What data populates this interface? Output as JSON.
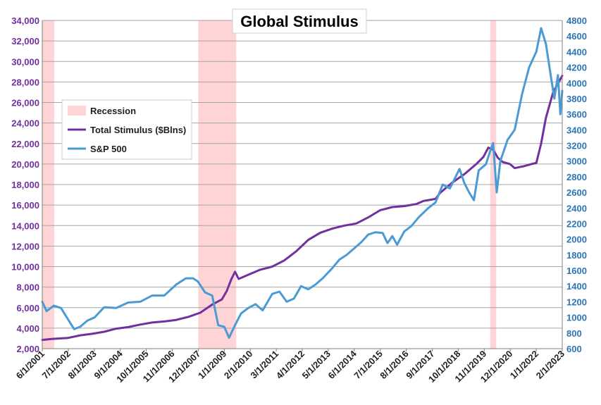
{
  "chart_data": {
    "type": "line",
    "title": "Global Stimulus",
    "xlabel": "",
    "ylabel": "",
    "grid": true,
    "legend_position": "upper-left",
    "x_ticks": [
      "6/1/2001",
      "7/1/2002",
      "8/1/2003",
      "9/1/2004",
      "10/1/2005",
      "11/1/2006",
      "12/1/2007",
      "1/1/2009",
      "2/1/2010",
      "3/1/2011",
      "4/1/2012",
      "5/1/2013",
      "6/1/2014",
      "7/1/2015",
      "8/1/2016",
      "9/1/2017",
      "10/1/2018",
      "11/1/2019",
      "12/1/2020",
      "1/1/2022",
      "2/1/2023"
    ],
    "x_range": [
      2001.42,
      2023.08
    ],
    "y_left": {
      "min": 2000,
      "max": 34000,
      "step": 2000,
      "ticks": [
        "2,000",
        "4,000",
        "6,000",
        "8,000",
        "10,000",
        "12,000",
        "14,000",
        "16,000",
        "18,000",
        "20,000",
        "22,000",
        "24,000",
        "26,000",
        "28,000",
        "30,000",
        "32,000",
        "34,000"
      ]
    },
    "y_right": {
      "min": 600,
      "max": 4800,
      "step": 200,
      "ticks": [
        "600",
        "800",
        "1000",
        "1200",
        "1400",
        "1600",
        "1800",
        "2000",
        "2200",
        "2400",
        "2600",
        "2800",
        "3000",
        "3200",
        "3400",
        "3600",
        "3800",
        "4000",
        "4200",
        "4400",
        "4600",
        "4800"
      ]
    },
    "recessions": [
      {
        "name": "Recession",
        "start": 2001.42,
        "end": 2001.92
      },
      {
        "name": "Recession",
        "start": 2007.92,
        "end": 2009.5
      },
      {
        "name": "Recession",
        "start": 2020.08,
        "end": 2020.33
      }
    ],
    "series": [
      {
        "name": "Total Stimulus ($Blns)",
        "axis": "left",
        "color": "#7030a0",
        "points": [
          [
            2001.42,
            2850
          ],
          [
            2001.8,
            2950
          ],
          [
            2002.5,
            3050
          ],
          [
            2003.0,
            3300
          ],
          [
            2003.5,
            3450
          ],
          [
            2004.0,
            3650
          ],
          [
            2004.5,
            3950
          ],
          [
            2005.0,
            4100
          ],
          [
            2005.5,
            4350
          ],
          [
            2006.0,
            4550
          ],
          [
            2006.5,
            4650
          ],
          [
            2007.0,
            4800
          ],
          [
            2007.5,
            5100
          ],
          [
            2008.0,
            5500
          ],
          [
            2008.5,
            6300
          ],
          [
            2008.9,
            6800
          ],
          [
            2009.1,
            7600
          ],
          [
            2009.3,
            8800
          ],
          [
            2009.45,
            9500
          ],
          [
            2009.6,
            8800
          ],
          [
            2010.0,
            9200
          ],
          [
            2010.5,
            9700
          ],
          [
            2011.0,
            10000
          ],
          [
            2011.5,
            10600
          ],
          [
            2012.0,
            11500
          ],
          [
            2012.5,
            12600
          ],
          [
            2013.0,
            13300
          ],
          [
            2013.5,
            13700
          ],
          [
            2014.0,
            14000
          ],
          [
            2014.5,
            14200
          ],
          [
            2015.0,
            14800
          ],
          [
            2015.5,
            15500
          ],
          [
            2016.0,
            15800
          ],
          [
            2016.5,
            15900
          ],
          [
            2017.0,
            16100
          ],
          [
            2017.3,
            16400
          ],
          [
            2017.8,
            16600
          ],
          [
            2018.0,
            17200
          ],
          [
            2018.5,
            18200
          ],
          [
            2019.0,
            19000
          ],
          [
            2019.5,
            20000
          ],
          [
            2019.8,
            20700
          ],
          [
            2020.0,
            21600
          ],
          [
            2020.2,
            21400
          ],
          [
            2020.4,
            20600
          ],
          [
            2020.6,
            20200
          ],
          [
            2020.9,
            20000
          ],
          [
            2021.1,
            19600
          ],
          [
            2021.3,
            19700
          ],
          [
            2021.5,
            19800
          ],
          [
            2021.8,
            20000
          ],
          [
            2022.0,
            20100
          ],
          [
            2022.2,
            22000
          ],
          [
            2022.4,
            24500
          ],
          [
            2022.7,
            27000
          ],
          [
            2023.08,
            28600
          ]
        ]
      },
      {
        "name": "S&P 500",
        "axis": "right",
        "color": "#4a9bd4",
        "points": [
          [
            2001.42,
            1200
          ],
          [
            2001.6,
            1080
          ],
          [
            2001.9,
            1150
          ],
          [
            2002.2,
            1120
          ],
          [
            2002.5,
            970
          ],
          [
            2002.75,
            850
          ],
          [
            2003.0,
            880
          ],
          [
            2003.3,
            960
          ],
          [
            2003.6,
            1000
          ],
          [
            2004.0,
            1130
          ],
          [
            2004.5,
            1120
          ],
          [
            2005.0,
            1190
          ],
          [
            2005.5,
            1200
          ],
          [
            2006.0,
            1280
          ],
          [
            2006.5,
            1280
          ],
          [
            2007.0,
            1420
          ],
          [
            2007.4,
            1500
          ],
          [
            2007.7,
            1500
          ],
          [
            2007.9,
            1460
          ],
          [
            2008.2,
            1320
          ],
          [
            2008.5,
            1280
          ],
          [
            2008.75,
            900
          ],
          [
            2009.0,
            880
          ],
          [
            2009.2,
            740
          ],
          [
            2009.45,
            900
          ],
          [
            2009.7,
            1050
          ],
          [
            2010.0,
            1120
          ],
          [
            2010.3,
            1170
          ],
          [
            2010.6,
            1090
          ],
          [
            2011.0,
            1300
          ],
          [
            2011.3,
            1330
          ],
          [
            2011.6,
            1200
          ],
          [
            2011.9,
            1240
          ],
          [
            2012.2,
            1400
          ],
          [
            2012.5,
            1360
          ],
          [
            2012.8,
            1420
          ],
          [
            2013.1,
            1500
          ],
          [
            2013.5,
            1630
          ],
          [
            2013.8,
            1740
          ],
          [
            2014.1,
            1800
          ],
          [
            2014.4,
            1880
          ],
          [
            2014.7,
            1960
          ],
          [
            2015.0,
            2060
          ],
          [
            2015.3,
            2090
          ],
          [
            2015.6,
            2080
          ],
          [
            2015.8,
            1950
          ],
          [
            2016.0,
            2040
          ],
          [
            2016.2,
            1930
          ],
          [
            2016.5,
            2100
          ],
          [
            2016.8,
            2170
          ],
          [
            2017.1,
            2280
          ],
          [
            2017.5,
            2400
          ],
          [
            2017.8,
            2470
          ],
          [
            2018.1,
            2700
          ],
          [
            2018.4,
            2650
          ],
          [
            2018.8,
            2900
          ],
          [
            2019.0,
            2720
          ],
          [
            2019.2,
            2600
          ],
          [
            2019.4,
            2500
          ],
          [
            2019.6,
            2880
          ],
          [
            2019.9,
            2960
          ],
          [
            2020.1,
            3150
          ],
          [
            2020.2,
            3230
          ],
          [
            2020.35,
            2600
          ],
          [
            2020.5,
            3000
          ],
          [
            2020.8,
            3270
          ],
          [
            2021.1,
            3400
          ],
          [
            2021.4,
            3850
          ],
          [
            2021.7,
            4200
          ],
          [
            2022.0,
            4400
          ],
          [
            2022.2,
            4700
          ],
          [
            2022.4,
            4500
          ],
          [
            2022.6,
            4100
          ],
          [
            2022.75,
            3800
          ],
          [
            2022.9,
            4100
          ],
          [
            2023.0,
            3600
          ],
          [
            2023.08,
            3900
          ]
        ]
      }
    ]
  }
}
